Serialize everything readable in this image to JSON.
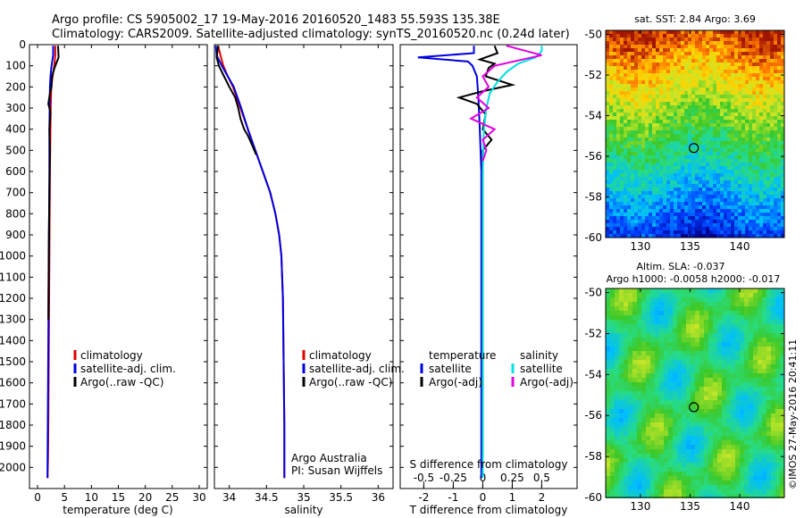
{
  "title_line1": "Argo profile: CS 5905002_17 19-May-2016 20160520_1483 55.593S 135.38E",
  "title_line2": "Climatology: CARS2009. Satellite-adjusted climatology: synTS_20160520.nc (0.24d later)",
  "credit_vertical": "©IMOS 27-May-2016 20:41:11",
  "colors": {
    "climatology": "#e00000",
    "satellite_adj_clim": "#0000e0",
    "argo": "#000000",
    "satellite_salinity": "#00e0e0",
    "argo_salinity_adj": "#e000e0"
  },
  "chart_data": [
    {
      "type": "line",
      "panel": "temperature",
      "xlabel": "temperature (deg C)",
      "ylabel": "",
      "xlim": [
        -1.5,
        31.5
      ],
      "ylim": [
        2100,
        0
      ],
      "xticks": [
        0,
        5,
        10,
        15,
        20,
        25,
        30
      ],
      "yticks": [
        0,
        100,
        200,
        300,
        400,
        500,
        600,
        700,
        800,
        900,
        1000,
        1100,
        1200,
        1300,
        1400,
        1500,
        1600,
        1700,
        1800,
        1900,
        2000
      ],
      "legend": [
        "climatology",
        "satellite-adj. clim.",
        "Argo(..raw -QC)"
      ],
      "legend_position": "middle-right",
      "series": [
        {
          "name": "climatology",
          "color": "#e00000",
          "x": [
            3.3,
            3.3,
            3.1,
            2.8,
            2.55,
            2.45,
            2.4,
            2.35,
            2.3,
            2.25,
            2.2,
            2.15,
            2.1,
            2.05,
            2.0,
            1.95,
            1.9,
            1.85
          ],
          "y": [
            5,
            50,
            100,
            150,
            200,
            300,
            400,
            500,
            600,
            800,
            1000,
            1200,
            1400,
            1600,
            1800,
            1950,
            2000,
            2050
          ]
        },
        {
          "name": "satellite-adj. clim.",
          "color": "#0000e0",
          "x": [
            2.9,
            2.9,
            2.6,
            2.4,
            2.3,
            2.25,
            2.2,
            2.2,
            2.15,
            2.1,
            2.05,
            2.0,
            1.95,
            1.9,
            1.85,
            1.85
          ],
          "y": [
            5,
            50,
            100,
            150,
            200,
            300,
            400,
            600,
            800,
            1000,
            1200,
            1400,
            1600,
            1800,
            2000,
            2050
          ]
        },
        {
          "name": "Argo(..raw -QC)",
          "color": "#000000",
          "x": [
            3.8,
            3.9,
            3.3,
            2.9,
            2.7,
            2.6,
            2.3,
            2.0,
            2.4,
            2.2,
            2.3,
            2.2,
            2.1,
            2.05,
            2.0
          ],
          "y": [
            5,
            60,
            100,
            130,
            150,
            200,
            230,
            280,
            320,
            400,
            500,
            700,
            900,
            1100,
            1300
          ]
        }
      ]
    },
    {
      "type": "line",
      "panel": "salinity",
      "xlabel": "salinity",
      "ylabel": "",
      "xlim": [
        33.8,
        36.2
      ],
      "ylim": [
        2100,
        0
      ],
      "xticks": [
        34,
        34.5,
        35,
        35.5,
        36
      ],
      "legend": [
        "climatology",
        "satellite-adj. clim.",
        "Argo(..raw -QC)"
      ],
      "legend_position": "middle-right",
      "annotation": [
        "Argo Australia",
        "PI: Susan Wijffels"
      ],
      "series": [
        {
          "name": "climatology",
          "color": "#e00000",
          "x": [
            33.85,
            33.88,
            33.92,
            33.98,
            34.05,
            34.15,
            34.25,
            34.35,
            34.45,
            34.55,
            34.62,
            34.67,
            34.7,
            34.72,
            34.73,
            34.74,
            34.74
          ],
          "y": [
            5,
            50,
            100,
            150,
            200,
            300,
            400,
            500,
            600,
            700,
            800,
            900,
            1000,
            1200,
            1500,
            1800,
            2050
          ]
        },
        {
          "name": "satellite-adj. clim.",
          "color": "#0000e0",
          "x": [
            33.82,
            33.83,
            33.9,
            33.98,
            34.06,
            34.16,
            34.25,
            34.35,
            34.45,
            34.55,
            34.62,
            34.67,
            34.7,
            34.72,
            34.73,
            34.74,
            34.74
          ],
          "y": [
            5,
            50,
            100,
            150,
            200,
            300,
            400,
            500,
            600,
            700,
            800,
            900,
            1000,
            1200,
            1500,
            1800,
            2050
          ]
        },
        {
          "name": "Argo(..raw -QC)",
          "color": "#000000",
          "x": [
            33.85,
            33.83,
            33.86,
            33.93,
            34.0,
            34.08,
            34.12,
            34.15,
            34.2,
            34.25,
            34.3,
            34.36
          ],
          "y": [
            5,
            60,
            100,
            150,
            200,
            250,
            300,
            350,
            400,
            430,
            470,
            520
          ]
        }
      ]
    },
    {
      "type": "line",
      "panel": "difference",
      "xlabel": "T difference from climatology",
      "xlabel_top": "S difference from climatology",
      "xlim_T": [
        -2.8,
        3.2
      ],
      "xlim_S": [
        -0.7,
        0.8
      ],
      "ylim": [
        2100,
        0
      ],
      "xticks_T": [
        -2,
        -1,
        0,
        1,
        2
      ],
      "xticks_S": [
        -0.5,
        -0.25,
        0,
        0.25,
        0.5
      ],
      "xticklabels_S": [
        "-0.5",
        "-0.25",
        "0",
        "0.25",
        "0.5"
      ],
      "legend_groups": [
        {
          "heading": "temperature",
          "entries": [
            "satellite",
            "Argo(-adj)"
          ]
        },
        {
          "heading": "salinity",
          "entries": [
            "satellite",
            "Argo(-adj)"
          ]
        }
      ],
      "legend_position": "middle",
      "series": [
        {
          "name": "temperature satellite",
          "color": "#0000e0",
          "x": [
            -0.3,
            -0.3,
            -2.2,
            -0.5,
            -0.35,
            -0.2,
            -0.15,
            -0.1,
            -0.05,
            -0.05,
            -0.05,
            -0.05,
            -0.05
          ],
          "y": [
            5,
            40,
            60,
            80,
            100,
            150,
            250,
            400,
            600,
            1000,
            1400,
            1800,
            2050
          ]
        },
        {
          "name": "temperature Argo(-adj)",
          "color": "#000000",
          "x": [
            0.4,
            0.5,
            -0.1,
            0.4,
            0.2,
            0.1,
            1.0,
            0.0,
            -0.8,
            -0.2,
            0.1,
            0.0,
            0.3,
            0.0,
            0.0,
            0.0,
            0.0,
            0.0,
            0.0
          ],
          "y": [
            5,
            40,
            70,
            90,
            110,
            150,
            190,
            220,
            250,
            280,
            330,
            400,
            450,
            500,
            700,
            900,
            1100,
            1500,
            1950
          ]
        },
        {
          "name": "salinity satellite",
          "color": "#00e0e0",
          "x": [
            0.5,
            0.5,
            0.45,
            0.3,
            0.2,
            0.12,
            0.06,
            0.03,
            0.01,
            0.0,
            0.0,
            0.0,
            0.0
          ],
          "y": [
            5,
            30,
            60,
            90,
            130,
            180,
            230,
            300,
            400,
            600,
            1000,
            1500,
            2050
          ]
        },
        {
          "name": "salinity Argo(-adj)",
          "color": "#e000e0",
          "x": [
            0.2,
            0.5,
            0.1,
            0.0,
            0.05,
            -0.05,
            0.05,
            -0.1,
            0.1,
            0.0,
            0.03,
            0.0
          ],
          "y": [
            5,
            50,
            100,
            150,
            200,
            250,
            300,
            350,
            400,
            450,
            500,
            550
          ]
        }
      ]
    },
    {
      "type": "heatmap",
      "panel": "sst_map",
      "title": "sat. SST: 2.84  Argo: 3.69",
      "xticks": [
        130,
        135,
        140
      ],
      "yticks": [
        -50,
        -52,
        -54,
        -56,
        -58,
        -60
      ],
      "xlim": [
        126.5,
        144.5
      ],
      "ylim": [
        -60,
        -49.8
      ],
      "marker": {
        "lon": 135.38,
        "lat": -55.593
      }
    },
    {
      "type": "heatmap",
      "panel": "sla_map",
      "title": "Altim. SLA: -0.037",
      "subtitle": "Argo h1000: -0.0058 h2000: -0.017",
      "xticks": [
        130,
        135,
        140
      ],
      "yticks": [
        -50,
        -52,
        -54,
        -56,
        -58,
        -60
      ],
      "xlim": [
        126.5,
        144.5
      ],
      "ylim": [
        -60,
        -49.8
      ],
      "marker": {
        "lon": 135.38,
        "lat": -55.593
      }
    }
  ]
}
